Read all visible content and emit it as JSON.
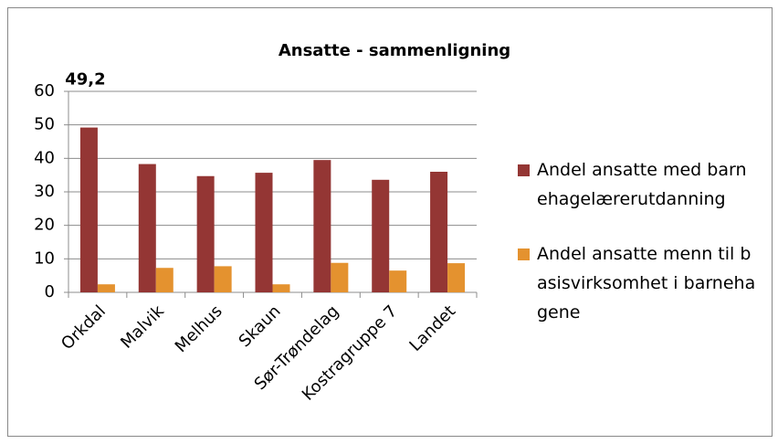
{
  "chart_data": {
    "type": "bar",
    "title": "Ansatte - sammenligning",
    "categories": [
      "Orkdal",
      "Malvik",
      "Melhus",
      "Skaun",
      "Sør-Trøndelag",
      "Kostragruppe 7",
      "Landet"
    ],
    "series": [
      {
        "name": "Andel ansatte med barnehagelærerutdanning",
        "color": "#943634",
        "values": [
          49.2,
          38.3,
          34.7,
          35.7,
          39.5,
          33.6,
          36.0
        ],
        "value_labels": [
          "49,2",
          null,
          null,
          null,
          null,
          null,
          null
        ]
      },
      {
        "name": "Andel ansatte menn til basisvirksomhet i barnehagene",
        "color": "#e4922f",
        "values": [
          2.4,
          7.3,
          7.8,
          2.4,
          8.8,
          6.5,
          8.7
        ]
      }
    ],
    "ylim": [
      0,
      60
    ],
    "yticks": [
      0,
      10,
      20,
      30,
      40,
      50,
      60
    ],
    "grid": true,
    "legend": "right"
  }
}
